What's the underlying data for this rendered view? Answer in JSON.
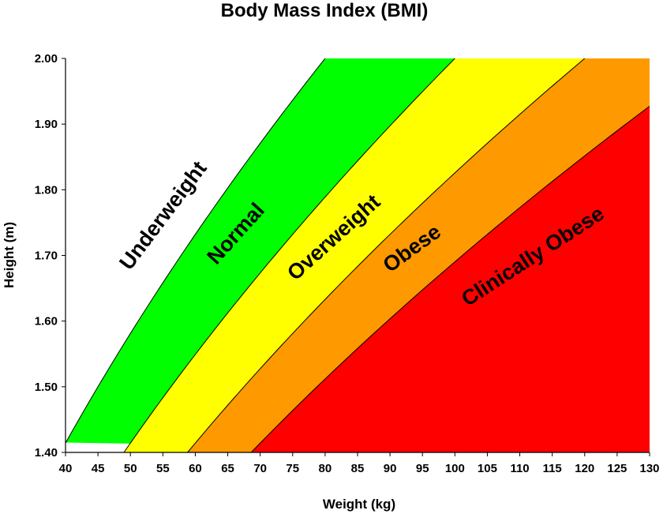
{
  "chart_data": {
    "type": "area",
    "title": "Body Mass Index (BMI)",
    "xlabel": "Weight (kg)",
    "ylabel": "Height (m)",
    "xlim": [
      40,
      130
    ],
    "ylim": [
      1.4,
      2.0
    ],
    "x_ticks": [
      "40",
      "45",
      "50",
      "55",
      "60",
      "65",
      "70",
      "75",
      "80",
      "85",
      "90",
      "95",
      "100",
      "105",
      "110",
      "115",
      "120",
      "125",
      "130"
    ],
    "y_ticks": [
      "1.40",
      "1.50",
      "1.60",
      "1.70",
      "1.80",
      "1.90",
      "2.00"
    ],
    "boundaries_bmi": [
      20,
      25,
      30,
      35
    ],
    "grid": false,
    "regions": [
      {
        "name": "Underweight",
        "bmi_min": 0,
        "bmi_max": 20,
        "color": "#ffffff"
      },
      {
        "name": "Normal",
        "bmi_min": 20,
        "bmi_max": 25,
        "color": "#00ff00"
      },
      {
        "name": "Overweight",
        "bmi_min": 25,
        "bmi_max": 30,
        "color": "#ffff00"
      },
      {
        "name": "Obese",
        "bmi_min": 30,
        "bmi_max": 35,
        "color": "#ff9900"
      },
      {
        "name": "Clinically Obese",
        "bmi_min": 35,
        "bmi_max": null,
        "color": "#ff0000"
      }
    ]
  }
}
